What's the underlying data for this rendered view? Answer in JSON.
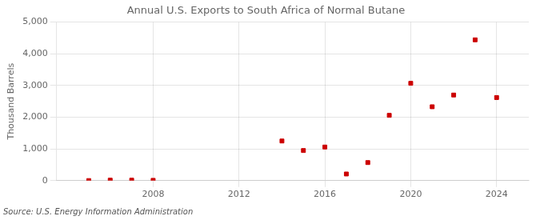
{
  "chart_data": {
    "type": "scatter",
    "title": "Annual U.S. Exports to South Africa of Normal Butane",
    "ylabel": "Thousand Barrels",
    "annotations": [
      "Source: U.S. Energy Information Administration"
    ],
    "x": [
      2005,
      2006,
      2007,
      2008,
      2014,
      2015,
      2016,
      2017,
      2018,
      2019,
      2020,
      2021,
      2022,
      2023,
      2024
    ],
    "values": [
      3,
      15,
      15,
      10,
      1250,
      950,
      1060,
      210,
      570,
      2060,
      3070,
      2330,
      2700,
      4440,
      2620
    ],
    "color": "#cc0000",
    "marker": "square",
    "xlim": [
      2003.5,
      2025.5
    ],
    "ylim": [
      0,
      5000
    ],
    "xticks": [
      2008,
      2012,
      2016,
      2020,
      2024
    ],
    "yticks": [
      0,
      {
        "value": 1000,
        "label": "1,000"
      },
      {
        "value": 2000,
        "label": "2,000"
      },
      {
        "value": 3000,
        "label": "3,000"
      },
      {
        "value": 4000,
        "label": "4,000"
      },
      {
        "value": 5000,
        "label": "5,000"
      }
    ],
    "grid": true
  }
}
